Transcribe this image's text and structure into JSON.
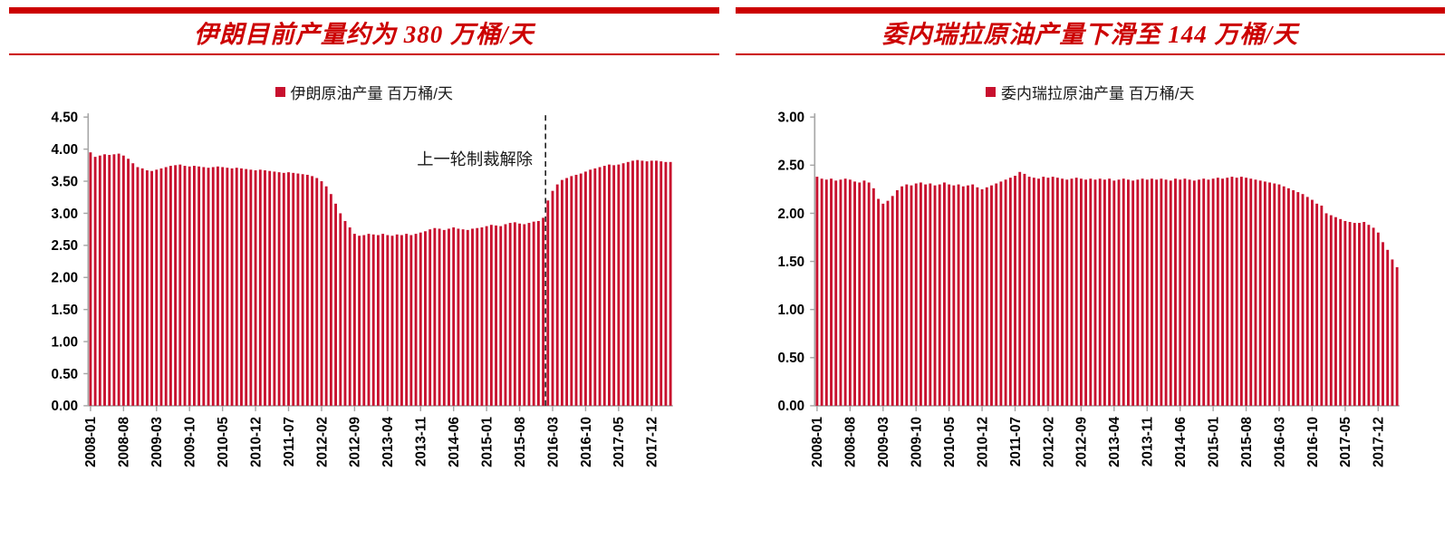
{
  "colors": {
    "title_red": "#CC0000",
    "bar_fill": "#C8102E",
    "axis_gray": "#A6A6A6",
    "dash_black": "#222222"
  },
  "chart_data": [
    {
      "type": "bar",
      "panel_title": "伊朗目前产量约为 380 万桶/天",
      "legend": "伊朗原油产量 百万桶/天",
      "x_start": "2008-01",
      "x_freq": "monthly",
      "x_months_count": 124,
      "x_tick_step": 7,
      "x_tick_labels": [
        "2008-01",
        "2008-08",
        "2009-03",
        "2009-10",
        "2010-05",
        "2010-12",
        "2011-07",
        "2012-02",
        "2012-09",
        "2013-04",
        "2013-11",
        "2014-06",
        "2015-01",
        "2015-08",
        "2016-03",
        "2016-10",
        "2017-05",
        "2017-12"
      ],
      "ylim": [
        0,
        4.5
      ],
      "y_tick_labels": [
        "0.00",
        "0.50",
        "1.00",
        "1.50",
        "2.00",
        "2.50",
        "3.00",
        "3.50",
        "4.00",
        "4.50"
      ],
      "bar_color": "#C8102E",
      "grid": false,
      "legend_position": "top-center",
      "annotation": {
        "text": "上一轮制裁解除",
        "line_month": "2016-01",
        "line_index": 97,
        "line_style": "dashed"
      },
      "values": [
        3.95,
        3.88,
        3.9,
        3.92,
        3.91,
        3.92,
        3.93,
        3.9,
        3.85,
        3.78,
        3.72,
        3.7,
        3.67,
        3.66,
        3.68,
        3.7,
        3.72,
        3.74,
        3.75,
        3.76,
        3.74,
        3.73,
        3.74,
        3.73,
        3.72,
        3.71,
        3.72,
        3.73,
        3.72,
        3.71,
        3.7,
        3.71,
        3.7,
        3.69,
        3.68,
        3.67,
        3.68,
        3.67,
        3.66,
        3.65,
        3.64,
        3.63,
        3.64,
        3.63,
        3.62,
        3.61,
        3.6,
        3.58,
        3.55,
        3.5,
        3.42,
        3.3,
        3.15,
        3.0,
        2.88,
        2.78,
        2.68,
        2.65,
        2.66,
        2.68,
        2.67,
        2.66,
        2.68,
        2.66,
        2.65,
        2.67,
        2.66,
        2.68,
        2.66,
        2.68,
        2.7,
        2.72,
        2.75,
        2.77,
        2.76,
        2.74,
        2.76,
        2.78,
        2.76,
        2.75,
        2.74,
        2.76,
        2.77,
        2.78,
        2.8,
        2.82,
        2.81,
        2.8,
        2.83,
        2.85,
        2.86,
        2.84,
        2.83,
        2.85,
        2.87,
        2.88,
        2.93,
        3.2,
        3.35,
        3.45,
        3.52,
        3.55,
        3.58,
        3.6,
        3.62,
        3.65,
        3.68,
        3.7,
        3.72,
        3.74,
        3.76,
        3.75,
        3.76,
        3.78,
        3.8,
        3.82,
        3.83,
        3.82,
        3.81,
        3.82,
        3.82,
        3.81,
        3.8,
        3.8
      ]
    },
    {
      "type": "bar",
      "panel_title": "委内瑞拉原油产量下滑至 144 万桶/天",
      "legend": "委内瑞拉原油产量 百万桶/天",
      "x_start": "2008-01",
      "x_freq": "monthly",
      "x_months_count": 124,
      "x_tick_step": 7,
      "x_tick_labels": [
        "2008-01",
        "2008-08",
        "2009-03",
        "2009-10",
        "2010-05",
        "2010-12",
        "2011-07",
        "2012-02",
        "2012-09",
        "2013-04",
        "2013-11",
        "2014-06",
        "2015-01",
        "2015-08",
        "2016-03",
        "2016-10",
        "2017-05",
        "2017-12"
      ],
      "ylim": [
        0,
        3.0
      ],
      "y_tick_labels": [
        "0.00",
        "0.50",
        "1.00",
        "1.50",
        "2.00",
        "2.50",
        "3.00"
      ],
      "bar_color": "#C8102E",
      "grid": false,
      "legend_position": "top-center",
      "values": [
        2.38,
        2.36,
        2.35,
        2.36,
        2.34,
        2.35,
        2.36,
        2.35,
        2.33,
        2.32,
        2.34,
        2.32,
        2.26,
        2.15,
        2.1,
        2.13,
        2.18,
        2.24,
        2.28,
        2.3,
        2.29,
        2.31,
        2.32,
        2.3,
        2.31,
        2.29,
        2.3,
        2.32,
        2.3,
        2.29,
        2.3,
        2.28,
        2.29,
        2.3,
        2.27,
        2.25,
        2.27,
        2.29,
        2.31,
        2.33,
        2.35,
        2.37,
        2.39,
        2.43,
        2.41,
        2.38,
        2.37,
        2.36,
        2.38,
        2.37,
        2.38,
        2.37,
        2.36,
        2.35,
        2.36,
        2.37,
        2.36,
        2.35,
        2.36,
        2.35,
        2.36,
        2.35,
        2.36,
        2.34,
        2.35,
        2.36,
        2.35,
        2.34,
        2.35,
        2.36,
        2.35,
        2.36,
        2.35,
        2.36,
        2.35,
        2.34,
        2.36,
        2.35,
        2.36,
        2.35,
        2.34,
        2.35,
        2.36,
        2.35,
        2.36,
        2.37,
        2.36,
        2.37,
        2.38,
        2.37,
        2.38,
        2.37,
        2.36,
        2.35,
        2.34,
        2.33,
        2.32,
        2.31,
        2.3,
        2.28,
        2.26,
        2.24,
        2.22,
        2.2,
        2.17,
        2.14,
        2.1,
        2.08,
        2.0,
        1.98,
        1.96,
        1.94,
        1.92,
        1.91,
        1.9,
        1.9,
        1.91,
        1.88,
        1.85,
        1.8,
        1.7,
        1.62,
        1.52,
        1.44
      ]
    }
  ]
}
